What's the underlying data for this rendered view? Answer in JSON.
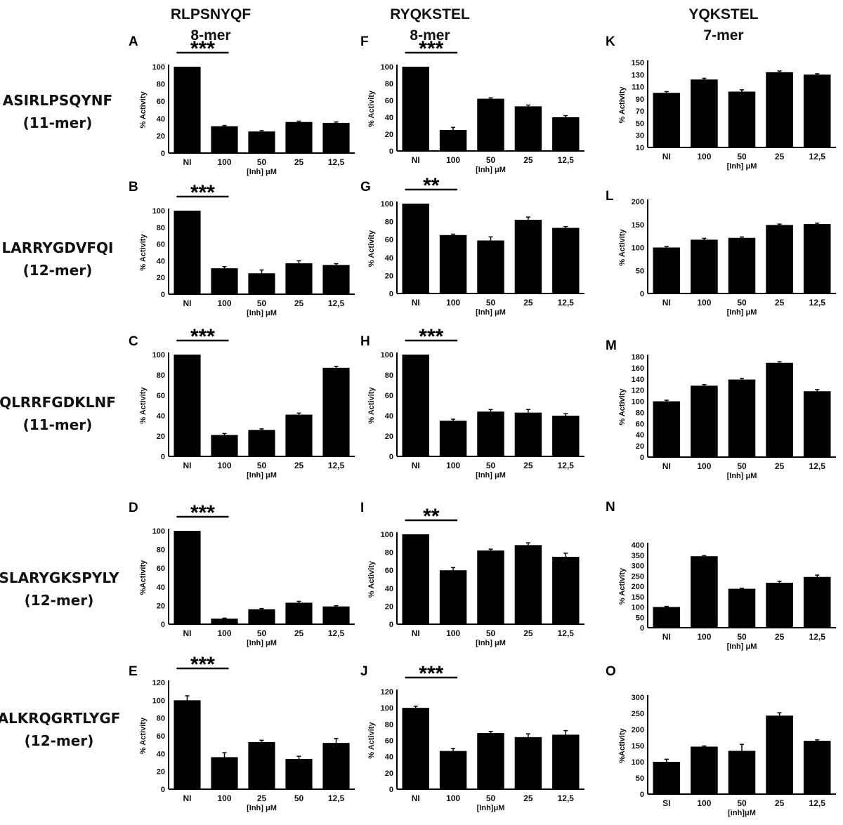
{
  "column_headers": [
    {
      "name": "RLPSNYQF",
      "sub": "8-mer"
    },
    {
      "name": "RYQKSTEL",
      "sub": "8-mer"
    },
    {
      "name": "YQKSTEL",
      "sub": "7-mer"
    }
  ],
  "row_headers": [
    {
      "name": "ASIRLPSQYNF",
      "sub": "(11-mer)"
    },
    {
      "name": "LARRYGDVFQI",
      "sub": "(12-mer)"
    },
    {
      "name": "QLRRFGDKLNF",
      "sub": "(11-mer)"
    },
    {
      "name": "SLARYGKSPYLY",
      "sub": "(12-mer)"
    },
    {
      "name": "ALKRQGRTLYGF",
      "sub": "(12-mer)"
    }
  ],
  "bar_color": "#000000",
  "chart_data": [
    {
      "panel": "A",
      "type": "bar",
      "categories": [
        "NI",
        "100",
        "50",
        "25",
        "12,5"
      ],
      "values": [
        100,
        31,
        25,
        36,
        35
      ],
      "errors": [
        0,
        1,
        1,
        1,
        1
      ],
      "ylabel": "% Activity",
      "xlabel": "[Inh] μM",
      "ylim": [
        0,
        100
      ],
      "yticks": [
        0,
        20,
        40,
        60,
        80,
        100
      ],
      "significance": "***",
      "grid": false
    },
    {
      "panel": "B",
      "type": "bar",
      "categories": [
        "NI",
        "100",
        "50",
        "25",
        "12,5"
      ],
      "values": [
        100,
        31,
        25,
        37,
        35
      ],
      "errors": [
        0,
        2,
        4,
        3,
        1.5
      ],
      "ylabel": "% Activity",
      "xlabel": "[Inh] μM",
      "ylim": [
        0,
        100
      ],
      "yticks": [
        0,
        20,
        40,
        60,
        80,
        100
      ],
      "significance": "***",
      "grid": false
    },
    {
      "panel": "C",
      "type": "bar",
      "categories": [
        "NI",
        "100",
        "50",
        "25",
        "12,5"
      ],
      "values": [
        100,
        21,
        26,
        41,
        87
      ],
      "errors": [
        0,
        1.5,
        1,
        1.5,
        1.5
      ],
      "ylabel": "% Activity",
      "xlabel": "[Inh] μM",
      "ylim": [
        0,
        100
      ],
      "yticks": [
        0,
        20,
        40,
        60,
        80,
        100
      ],
      "significance": "***",
      "grid": false
    },
    {
      "panel": "D",
      "type": "bar",
      "categories": [
        "NI",
        "100",
        "50",
        "25",
        "12,5"
      ],
      "values": [
        100,
        6,
        16,
        23,
        19
      ],
      "errors": [
        0,
        0.5,
        0.8,
        1.5,
        0.8
      ],
      "ylabel": "%Activity",
      "xlabel": "[Inh] μM",
      "ylim": [
        0,
        100
      ],
      "yticks": [
        0,
        20,
        40,
        60,
        80,
        100
      ],
      "significance": "***",
      "grid": false
    },
    {
      "panel": "E",
      "type": "bar",
      "categories": [
        "NI",
        "100",
        "25",
        "50",
        "12,5"
      ],
      "values": [
        100,
        36,
        53,
        34,
        52
      ],
      "errors": [
        5,
        5,
        2,
        3,
        5
      ],
      "ylabel": "% Activity",
      "xlabel": "[Inh] μM",
      "ylim": [
        0,
        120
      ],
      "yticks": [
        0,
        20,
        40,
        60,
        80,
        100,
        120
      ],
      "significance": "***",
      "grid": false
    },
    {
      "panel": "F",
      "type": "bar",
      "categories": [
        "NI",
        "100",
        "50",
        "25",
        "12,5"
      ],
      "values": [
        100,
        25,
        62,
        53,
        40
      ],
      "errors": [
        0,
        3,
        1,
        1.5,
        2
      ],
      "ylabel": "% Activity",
      "xlabel": "[Inh] μM",
      "ylim": [
        0,
        100
      ],
      "yticks": [
        0,
        20,
        40,
        60,
        80,
        100
      ],
      "significance": "***",
      "grid": false
    },
    {
      "panel": "G",
      "type": "bar",
      "categories": [
        "NI",
        "100",
        "50",
        "25",
        "12,5"
      ],
      "values": [
        100,
        65,
        59,
        82,
        73
      ],
      "errors": [
        0,
        1,
        4,
        3,
        1.5
      ],
      "ylabel": "% Activity",
      "xlabel": "[Inh] μM",
      "ylim": [
        0,
        100
      ],
      "yticks": [
        0,
        20,
        40,
        60,
        80,
        100
      ],
      "significance": "**",
      "grid": false
    },
    {
      "panel": "H",
      "type": "bar",
      "categories": [
        "NI",
        "100",
        "50",
        "25",
        "12,5"
      ],
      "values": [
        100,
        35,
        44,
        43,
        40
      ],
      "errors": [
        0,
        1.5,
        2,
        3,
        2
      ],
      "ylabel": "% Activity",
      "xlabel": "[Inh] μM",
      "ylim": [
        0,
        100
      ],
      "yticks": [
        0,
        20,
        40,
        60,
        80,
        100
      ],
      "significance": "***",
      "grid": false
    },
    {
      "panel": "I",
      "type": "bar",
      "categories": [
        "NI",
        "100",
        "50",
        "25",
        "12,5"
      ],
      "values": [
        100,
        60,
        82,
        88,
        75
      ],
      "errors": [
        0,
        3,
        1.5,
        2.5,
        4
      ],
      "ylabel": "% Activity",
      "xlabel": "[Inh] μM",
      "ylim": [
        0,
        100
      ],
      "yticks": [
        0,
        20,
        40,
        60,
        80,
        100
      ],
      "significance": "**",
      "grid": false
    },
    {
      "panel": "J",
      "type": "bar",
      "categories": [
        "NI",
        "100",
        "50",
        "25",
        "12,5"
      ],
      "values": [
        100,
        47,
        69,
        64,
        67
      ],
      "errors": [
        2,
        3,
        2,
        4,
        5
      ],
      "ylabel": "% Activity",
      "xlabel": "[Inh]μM",
      "ylim": [
        0,
        120
      ],
      "yticks": [
        0,
        20,
        40,
        60,
        80,
        100,
        120
      ],
      "significance": "***",
      "grid": false
    },
    {
      "panel": "K",
      "type": "bar",
      "categories": [
        "NI",
        "100",
        "50",
        "25",
        "12,5"
      ],
      "values": [
        100,
        122,
        102,
        134,
        130
      ],
      "errors": [
        2,
        2,
        3,
        2,
        1.5
      ],
      "ylabel": "% Activity",
      "xlabel": "[Inh] μM",
      "ylim": [
        10,
        150
      ],
      "yticks": [
        10,
        30,
        50,
        70,
        90,
        110,
        130,
        150
      ],
      "significance": "",
      "grid": false
    },
    {
      "panel": "L",
      "type": "bar",
      "categories": [
        "NI",
        "100",
        "50",
        "25",
        "12,5"
      ],
      "values": [
        100,
        117,
        121,
        149,
        151
      ],
      "errors": [
        2,
        3,
        2,
        2,
        2
      ],
      "ylabel": "% Activity",
      "xlabel": "[Inh] μM",
      "ylim": [
        0,
        200
      ],
      "yticks": [
        0,
        50,
        100,
        150,
        200
      ],
      "significance": "",
      "grid": false
    },
    {
      "panel": "M",
      "type": "bar",
      "categories": [
        "NI",
        "100",
        "50",
        "25",
        "12,5"
      ],
      "values": [
        100,
        128,
        139,
        169,
        118
      ],
      "errors": [
        2,
        2,
        2,
        2,
        3
      ],
      "ylabel": "% Activity",
      "xlabel": "[Inh] μM",
      "ylim": [
        0,
        180
      ],
      "yticks": [
        0,
        20,
        40,
        60,
        80,
        100,
        120,
        140,
        160,
        180
      ],
      "significance": "",
      "grid": false
    },
    {
      "panel": "N",
      "type": "bar",
      "categories": [
        "NI",
        "100",
        "50",
        "25",
        "12,5"
      ],
      "values": [
        100,
        345,
        188,
        217,
        245
      ],
      "errors": [
        3,
        3,
        3,
        7,
        9
      ],
      "ylabel": "% Activity",
      "xlabel": "[Inh] μM",
      "ylim": [
        0,
        400
      ],
      "yticks": [
        0,
        50,
        100,
        150,
        200,
        250,
        300,
        350,
        400
      ],
      "significance": "",
      "grid": false
    },
    {
      "panel": "O",
      "type": "bar",
      "categories": [
        "SI",
        "100",
        "50",
        "25",
        "12,5"
      ],
      "values": [
        100,
        147,
        134,
        243,
        165
      ],
      "errors": [
        8,
        2,
        20,
        9,
        3
      ],
      "ylabel": "%Activity",
      "xlabel": "[inh]μM",
      "ylim": [
        0,
        300
      ],
      "yticks": [
        0,
        50,
        100,
        150,
        200,
        250,
        300
      ],
      "significance": "",
      "grid": false
    }
  ]
}
